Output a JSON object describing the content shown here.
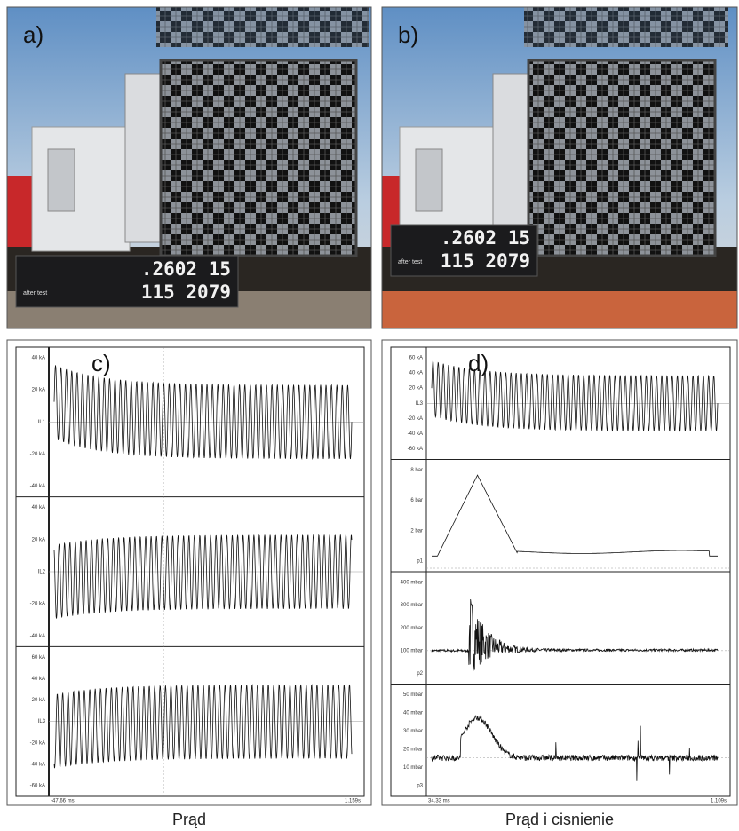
{
  "panels": [
    {
      "label": "a)",
      "display": {
        "line1": ".2602 15",
        "line2": "115 2079",
        "caption": "after test"
      }
    },
    {
      "label": "b)",
      "display": {
        "line1": ".2602 15",
        "line2": "115 2079",
        "caption": "after test"
      }
    },
    {
      "label": "c)",
      "traces": [
        {
          "labels": [
            "40 kA",
            "20 kA",
            "IL1",
            "-20 kA",
            "-40 kA"
          ]
        },
        {
          "labels": [
            "40 kA",
            "20 kA",
            "IL2",
            "-20 kA",
            "-40 kA"
          ]
        },
        {
          "labels": [
            "60 kA",
            "40 kA",
            "20 kA",
            "IL3",
            "-20 kA",
            "-40 kA",
            "-60 kA"
          ]
        }
      ],
      "footer": [
        "-47.66 ms",
        "1.159s"
      ]
    },
    {
      "label": "d)",
      "traces": [
        {
          "labels": [
            "60 kA",
            "40 kA",
            "20 kA",
            "IL3",
            "-20 kA",
            "-40 kA",
            "-60 kA"
          ]
        },
        {
          "labels": [
            "8 bar",
            "6 bar",
            "2 bar",
            "p1"
          ]
        },
        {
          "labels": [
            "400 mbar",
            "300 mbar",
            "200 mbar",
            "100 mbar",
            "p2"
          ]
        },
        {
          "labels": [
            "50 mbar",
            "40 mbar",
            "30 mbar",
            "20 mbar",
            "10 mbar",
            "p3"
          ]
        }
      ],
      "footer": [
        "34.33 ms",
        "1.109s"
      ]
    }
  ],
  "captions": [
    "Prąd",
    "Prąd i cisnienie"
  ]
}
